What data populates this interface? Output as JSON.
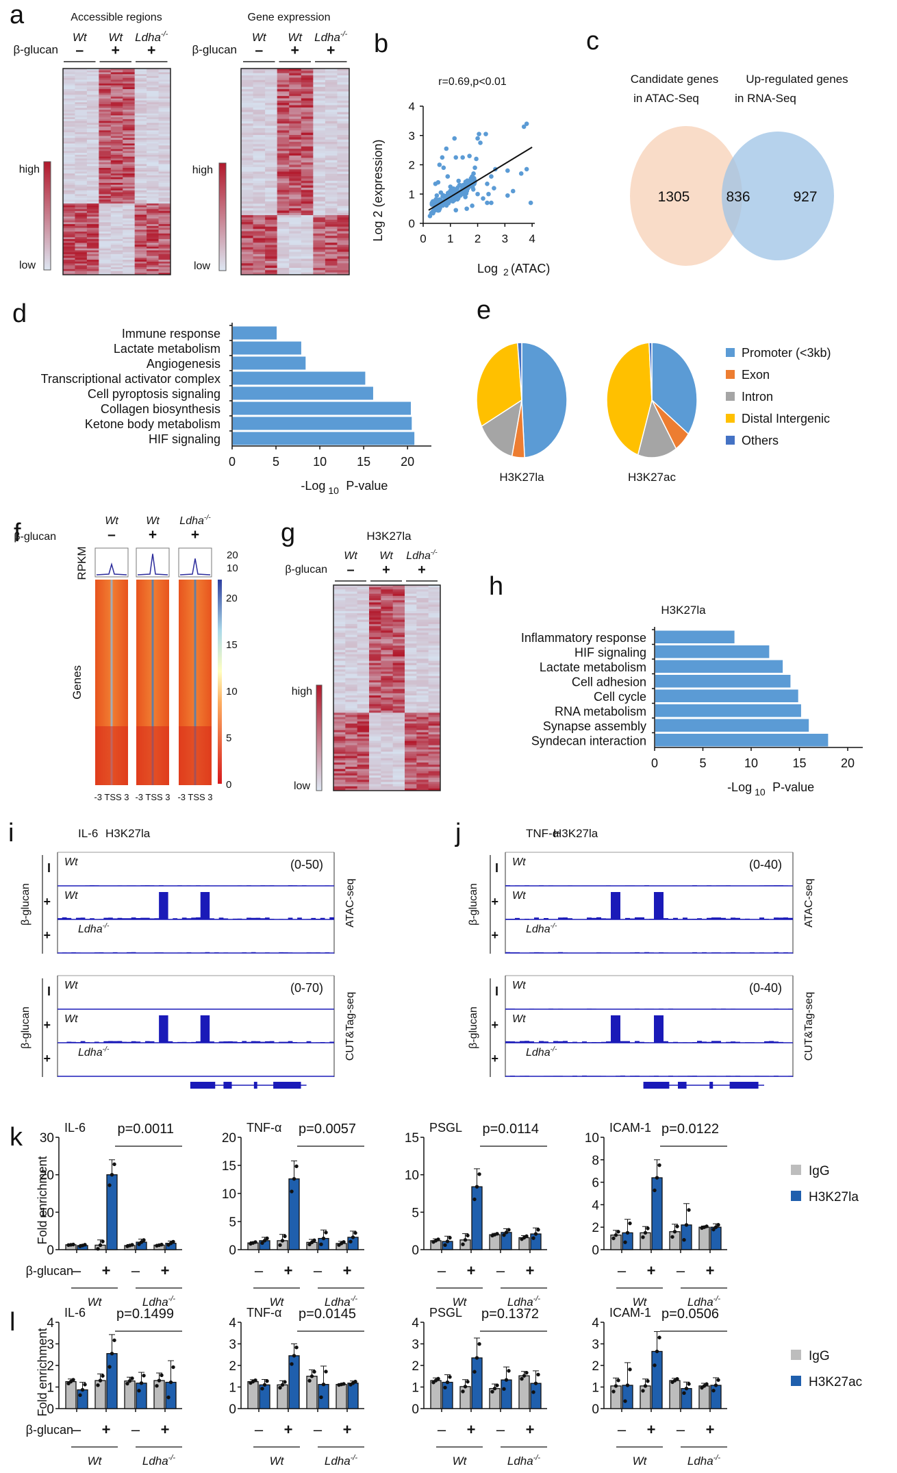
{
  "panels": {
    "a": {
      "letter": "a",
      "left_title": "Accessible regions",
      "right_title": "Gene expression",
      "genotypes": [
        "Wt",
        "Wt",
        "Ldha"
      ],
      "ko_sup": "-/-",
      "treatment_label": "β-glucan",
      "treatment_signs": [
        "–",
        "+",
        "+"
      ],
      "scale_high": "high",
      "scale_low": "low"
    },
    "b": {
      "letter": "b"
    },
    "c": {
      "letter": "c"
    },
    "d": {
      "letter": "d"
    },
    "e": {
      "letter": "e"
    },
    "f": {
      "letter": "f",
      "genotypes": [
        "Wt",
        "Wt",
        "Ldha"
      ],
      "ko_sup": "-/-",
      "treatment_label": "β-glucan",
      "treatment_signs": [
        "–",
        "+",
        "+"
      ],
      "profile_ylabel": "RPKM",
      "profile_ticks": [
        "20",
        "10"
      ],
      "heatmap_ylabel": "Genes",
      "x_ticks": "-3 TSS 3",
      "colorbar_ticks": [
        "20",
        "15",
        "10",
        "5",
        "0"
      ]
    },
    "g": {
      "letter": "g",
      "title": "H3K27la",
      "genotypes": [
        "Wt",
        "Wt",
        "Ldha"
      ],
      "ko_sup": "-/-",
      "treatment_label": "β-glucan",
      "treatment_signs": [
        "–",
        "+",
        "+"
      ],
      "scale_high": "high",
      "scale_low": "low"
    },
    "h": {
      "letter": "h"
    },
    "i": {
      "letter": "i",
      "gene": "IL-6",
      "mark": "H3K27la",
      "treatment_label": "β-glucan",
      "track_signs": [
        "I",
        "+",
        "+"
      ],
      "track_labels": [
        "Wt",
        "Wt",
        "Ldha"
      ],
      "ko_sup": "-/-",
      "atac_range": "(0-50)",
      "cut_range": "(0-70)",
      "atac_label": "ATAC-seq",
      "cut_label": "CUT&Tag-seq"
    },
    "j": {
      "letter": "j",
      "gene": "TNF-α",
      "mark": "H3K27la",
      "treatment_label": "β-glucan",
      "track_signs": [
        "I",
        "+",
        "+"
      ],
      "track_labels": [
        "Wt",
        "Wt",
        "Ldha"
      ],
      "ko_sup": "-/-",
      "atac_range": "(0-40)",
      "cut_range": "(0-40)",
      "atac_label": "ATAC-seq",
      "cut_label": "CUT&Tag-seq"
    },
    "k": {
      "letter": "k",
      "ylabel": "Fold enrichment",
      "treatment_label": "β-glucan",
      "legend": [
        "IgG",
        "H3K27la"
      ]
    },
    "l": {
      "letter": "l",
      "ylabel": "Fold enrichment",
      "treatment_label": "β-glucan",
      "legend": [
        "IgG",
        "H3K27ac"
      ]
    }
  },
  "colors": {
    "bar_blue": "#5b9bd5",
    "dark_blue": "#1f5fad",
    "igg_gray": "#bdbdbd",
    "track_blue": "#1a1ab8",
    "venn_left": "#f9dcc8",
    "venn_right": "#9dc3e6",
    "promoter": "#5b9bd5",
    "exon": "#ed7d31",
    "intron": "#a5a5a5",
    "distal": "#ffc000",
    "others": "#4472c4",
    "heat_red": "#b2182b",
    "heat_low": "#d6e0ee"
  },
  "chart_data": [
    {
      "id": "b",
      "type": "scatter",
      "title": "r=0.69,p<0.01",
      "xlabel": "Log2 (ATAC)",
      "ylabel": "Log2 (expression)",
      "xlim": [
        0,
        4
      ],
      "ylim": [
        0,
        4
      ],
      "x_ticks": [
        "0",
        "1",
        "2",
        "3",
        "4"
      ],
      "y_ticks": [
        "0",
        "1",
        "2",
        "3",
        "4"
      ],
      "fit_line": {
        "x": [
          0.2,
          4.0
        ],
        "y": [
          0.45,
          2.6
        ]
      },
      "points": [
        [
          0.25,
          0.25
        ],
        [
          0.3,
          0.35
        ],
        [
          0.35,
          0.4
        ],
        [
          0.4,
          0.5
        ],
        [
          0.45,
          0.45
        ],
        [
          0.5,
          0.6
        ],
        [
          0.55,
          0.55
        ],
        [
          0.6,
          0.7
        ],
        [
          0.65,
          0.6
        ],
        [
          0.7,
          0.75
        ],
        [
          0.75,
          0.65
        ],
        [
          0.8,
          0.8
        ],
        [
          0.85,
          0.7
        ],
        [
          0.9,
          0.85
        ],
        [
          0.95,
          0.75
        ],
        [
          1.0,
          0.9
        ],
        [
          1.05,
          0.85
        ],
        [
          1.1,
          0.95
        ],
        [
          1.15,
          0.8
        ],
        [
          1.2,
          1.0
        ],
        [
          1.25,
          0.9
        ],
        [
          1.3,
          1.05
        ],
        [
          1.35,
          0.95
        ],
        [
          1.4,
          1.1
        ],
        [
          1.45,
          1.0
        ],
        [
          1.5,
          1.2
        ],
        [
          1.55,
          1.1
        ],
        [
          1.6,
          1.3
        ],
        [
          1.65,
          1.2
        ],
        [
          1.7,
          1.4
        ],
        [
          1.75,
          1.5
        ],
        [
          1.8,
          1.6
        ],
        [
          1.85,
          1.7
        ],
        [
          1.9,
          1.9
        ],
        [
          0.45,
          1.35
        ],
        [
          0.55,
          1.4
        ],
        [
          0.6,
          2.0
        ],
        [
          0.7,
          2.25
        ],
        [
          0.75,
          1.9
        ],
        [
          0.85,
          2.55
        ],
        [
          0.9,
          1.6
        ],
        [
          1.15,
          2.9
        ],
        [
          1.2,
          2.25
        ],
        [
          1.45,
          2.25
        ],
        [
          1.7,
          2.3
        ],
        [
          1.95,
          2.2
        ],
        [
          2.0,
          2.9
        ],
        [
          2.05,
          3.05
        ],
        [
          2.1,
          2.75
        ],
        [
          2.3,
          3.05
        ],
        [
          2.0,
          1.0
        ],
        [
          2.2,
          0.85
        ],
        [
          2.35,
          1.35
        ],
        [
          2.4,
          1.0
        ],
        [
          2.5,
          1.6
        ],
        [
          2.6,
          1.2
        ],
        [
          2.65,
          1.85
        ],
        [
          2.35,
          0.7
        ],
        [
          2.5,
          0.7
        ],
        [
          3.1,
          1.8
        ],
        [
          3.1,
          0.95
        ],
        [
          3.3,
          1.1
        ],
        [
          3.6,
          1.7
        ],
        [
          3.7,
          3.3
        ],
        [
          3.8,
          3.4
        ],
        [
          3.8,
          1.85
        ],
        [
          3.95,
          0.7
        ],
        [
          1.8,
          0.6
        ],
        [
          1.55,
          0.9
        ],
        [
          1.6,
          0.5
        ],
        [
          1.0,
          1.25
        ],
        [
          1.3,
          1.45
        ],
        [
          0.5,
          0.95
        ],
        [
          0.65,
          1.05
        ],
        [
          1.2,
          0.45
        ]
      ]
    },
    {
      "id": "c",
      "type": "venn",
      "sets": [
        {
          "label": "Candidate genes in ATAC-Seq",
          "only": 1305
        },
        {
          "label": "Up-regulated genes in RNA-Seq",
          "only": 927
        }
      ],
      "overlap": 836
    },
    {
      "id": "d",
      "type": "bar",
      "orientation": "horizontal",
      "xlabel": "-Log10 P-value",
      "xlim": [
        0,
        22
      ],
      "x_ticks": [
        "0",
        "5",
        "10",
        "15",
        "20"
      ],
      "categories": [
        "Immune response",
        "Lactate metabolism",
        "Angiogenesis",
        "Transcriptional activator complex",
        "Cell pyroptosis signaling",
        "Collagen biosynthesis",
        "Ketone body metabolism",
        "HIF signaling"
      ],
      "values": [
        5.0,
        7.8,
        8.3,
        15.1,
        16.0,
        20.3,
        20.4,
        20.7
      ]
    },
    {
      "id": "e",
      "type": "pie",
      "legend": [
        "Promoter (<3kb)",
        "Exon",
        "Intron",
        "Distal Intergenic",
        "Others"
      ],
      "series": [
        {
          "name": "H3K27la",
          "values": [
            49,
            4.5,
            14,
            31,
            1.5
          ]
        },
        {
          "name": "H3K27ac",
          "values": [
            35,
            6,
            14,
            44,
            1
          ]
        }
      ]
    },
    {
      "id": "h",
      "type": "bar",
      "orientation": "horizontal",
      "title": "H3K27la",
      "xlabel": "-Log10 P-value",
      "xlim": [
        0,
        20
      ],
      "x_ticks": [
        "0",
        "5",
        "10",
        "15",
        "20"
      ],
      "categories": [
        "Inflammatory response",
        "HIF signaling",
        "Lactate metabolism",
        "Cell adhesion",
        "Cell cycle",
        "RNA metabolism",
        "Synapse assembly",
        "Syndecan interaction"
      ],
      "values": [
        8.2,
        11.8,
        13.2,
        14.0,
        14.8,
        15.1,
        15.9,
        17.9
      ]
    },
    {
      "id": "k",
      "type": "bar",
      "ylabel": "Fold enrichment",
      "group_labels": [
        "Wt",
        "Ldha"
      ],
      "treatment_signs": [
        "–",
        "+",
        "–",
        "+"
      ],
      "series_names": [
        "IgG",
        "H3K27la"
      ],
      "subplots": [
        {
          "title": "IL-6",
          "p": "p=0.0011",
          "ylim": [
            0,
            30
          ],
          "y_ticks": [
            "0",
            "10",
            "20",
            "30"
          ],
          "igg": [
            1.3,
            1.2,
            1.1,
            1.2
          ],
          "mark": [
            1.1,
            20.0,
            2.0,
            1.7
          ],
          "err": [
            0.3,
            4.0,
            0.8,
            0.6
          ]
        },
        {
          "title": "TNF-α",
          "p": "p=0.0057",
          "ylim": [
            0,
            20
          ],
          "y_ticks": [
            "0",
            "5",
            "10",
            "15",
            "20"
          ],
          "igg": [
            1.2,
            1.6,
            1.3,
            1.1
          ],
          "mark": [
            1.6,
            12.6,
            2.0,
            2.2
          ],
          "err": [
            0.6,
            3.2,
            1.5,
            1.1
          ]
        },
        {
          "title": "PSGL",
          "p": "p=0.0114",
          "ylim": [
            0,
            15
          ],
          "y_ticks": [
            "0",
            "5",
            "10",
            "15"
          ],
          "igg": [
            1.2,
            1.3,
            2.0,
            1.6
          ],
          "mark": [
            1.1,
            8.4,
            2.3,
            2.1
          ],
          "err": [
            0.7,
            2.4,
            0.5,
            0.8
          ]
        },
        {
          "title": "ICAM-1",
          "p": "p=0.0122",
          "ylim": [
            0,
            10
          ],
          "y_ticks": [
            "0",
            "2",
            "4",
            "6",
            "8",
            "10"
          ],
          "igg": [
            1.3,
            1.5,
            1.6,
            2.0
          ],
          "mark": [
            1.5,
            6.4,
            2.2,
            2.0
          ],
          "err": [
            1.2,
            1.6,
            1.9,
            0.3
          ]
        }
      ]
    },
    {
      "id": "l",
      "type": "bar",
      "ylabel": "Fold enrichment",
      "group_labels": [
        "Wt",
        "Ldha"
      ],
      "treatment_signs": [
        "–",
        "+",
        "–",
        "+"
      ],
      "series_names": [
        "IgG",
        "H3K27ac"
      ],
      "subplots": [
        {
          "title": "IL-6",
          "p": "p=0.1499",
          "ylim": [
            0,
            4
          ],
          "y_ticks": [
            "0",
            "1",
            "2",
            "3",
            "4"
          ],
          "igg": [
            1.25,
            1.3,
            1.28,
            1.3
          ],
          "mark": [
            0.87,
            2.55,
            1.18,
            1.22
          ],
          "err": [
            0.35,
            0.88,
            0.5,
            1.0
          ]
        },
        {
          "title": "TNF-α",
          "p": "p=0.0145",
          "ylim": [
            0,
            4
          ],
          "y_ticks": [
            "0",
            "1",
            "2",
            "3",
            "4"
          ],
          "igg": [
            1.25,
            1.1,
            1.5,
            1.12
          ],
          "mark": [
            1.1,
            2.45,
            1.12,
            1.18
          ],
          "err": [
            0.25,
            0.55,
            0.85,
            0.1
          ]
        },
        {
          "title": "PSGL",
          "p": "p=0.1372",
          "ylim": [
            0,
            4
          ],
          "y_ticks": [
            "0",
            "1",
            "2",
            "3",
            "4"
          ],
          "igg": [
            1.3,
            1.02,
            0.93,
            1.52
          ],
          "mark": [
            1.22,
            2.35,
            1.33,
            1.17
          ],
          "err": [
            0.35,
            0.92,
            0.6,
            0.58
          ]
        },
        {
          "title": "ICAM-1",
          "p": "p=0.0506",
          "ylim": [
            0,
            4
          ],
          "y_ticks": [
            "0",
            "1",
            "2",
            "3",
            "4"
          ],
          "igg": [
            1.05,
            1.05,
            1.3,
            1.05
          ],
          "mark": [
            1.08,
            2.65,
            0.93,
            1.08
          ],
          "err": [
            1.05,
            0.92,
            0.3,
            0.35
          ]
        }
      ]
    }
  ]
}
